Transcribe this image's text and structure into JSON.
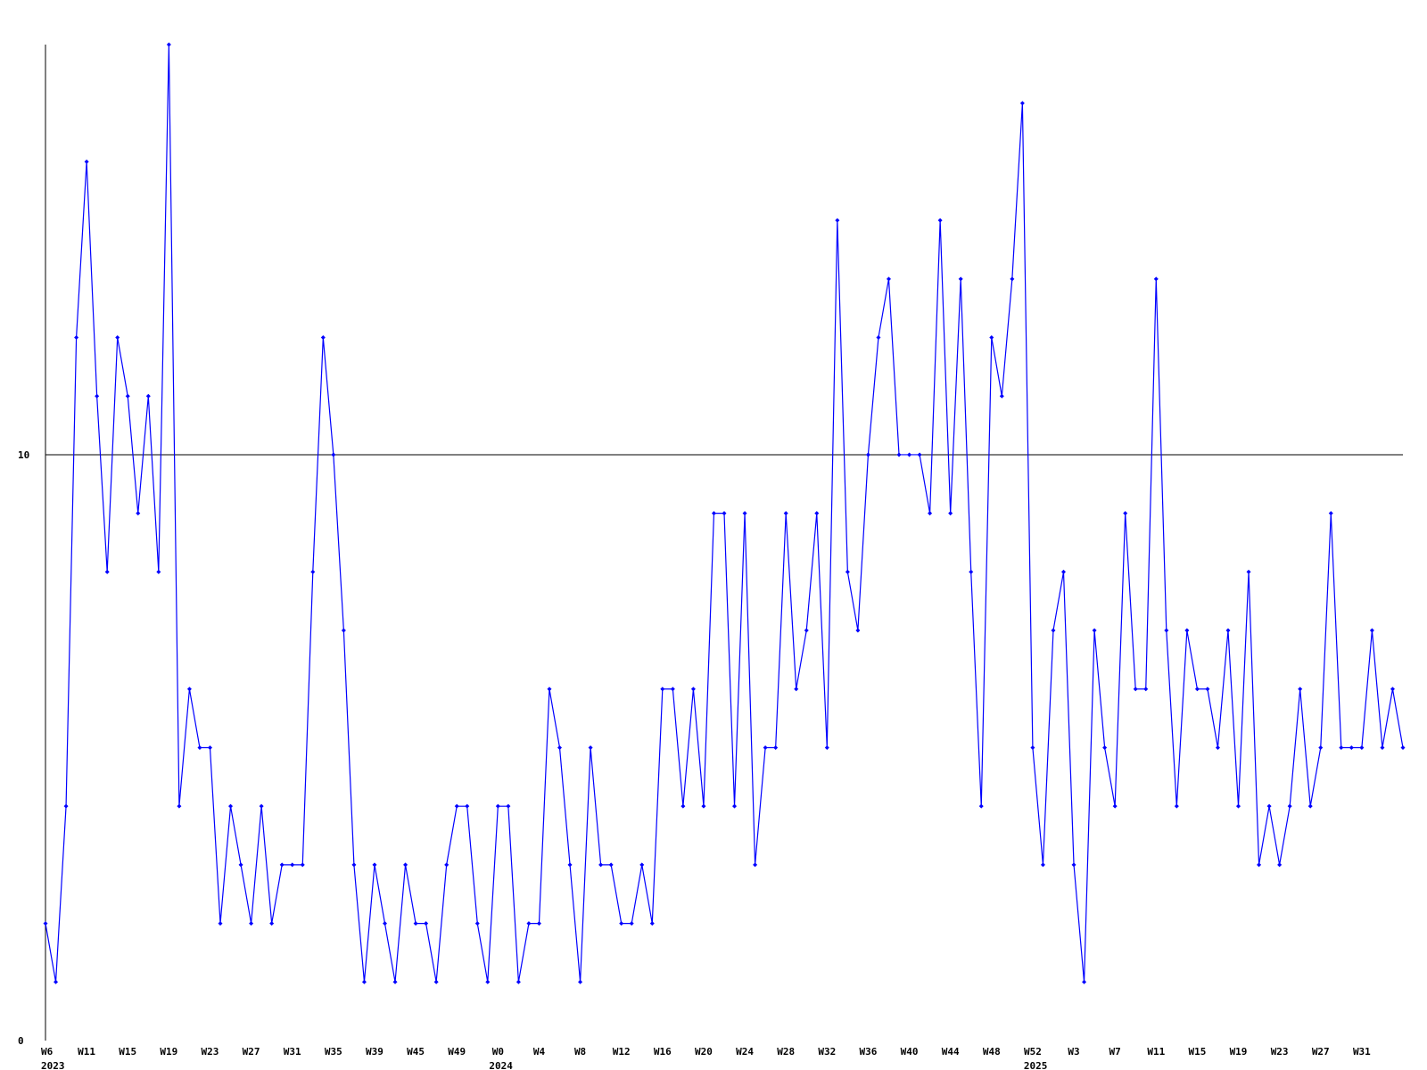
{
  "chart_data": {
    "type": "line",
    "color": "#0000ff",
    "ylim": [
      0,
      17
    ],
    "yticks": [
      0,
      10
    ],
    "grid": true,
    "categories": [
      [
        "W6",
        "2023"
      ],
      null,
      null,
      null,
      [
        "W11"
      ],
      null,
      null,
      null,
      [
        "W15"
      ],
      null,
      null,
      null,
      [
        "W19"
      ],
      null,
      null,
      null,
      [
        "W23"
      ],
      null,
      null,
      null,
      [
        "W27"
      ],
      null,
      null,
      null,
      [
        "W31"
      ],
      null,
      null,
      null,
      [
        "W35"
      ],
      null,
      null,
      null,
      [
        "W39"
      ],
      null,
      null,
      null,
      [
        "W45"
      ],
      null,
      null,
      null,
      [
        "W49"
      ],
      null,
      null,
      null,
      [
        "W0",
        "2024"
      ],
      null,
      null,
      null,
      [
        "W4"
      ],
      null,
      null,
      null,
      [
        "W8"
      ],
      null,
      null,
      null,
      [
        "W12"
      ],
      null,
      null,
      null,
      [
        "W16"
      ],
      null,
      null,
      null,
      [
        "W20"
      ],
      null,
      null,
      null,
      [
        "W24"
      ],
      null,
      null,
      null,
      [
        "W28"
      ],
      null,
      null,
      null,
      [
        "W32"
      ],
      null,
      null,
      null,
      [
        "W36"
      ],
      null,
      null,
      null,
      [
        "W40"
      ],
      null,
      null,
      null,
      [
        "W44"
      ],
      null,
      null,
      null,
      [
        "W48"
      ],
      null,
      null,
      null,
      [
        "W52",
        "2025"
      ],
      null,
      null,
      null,
      [
        "W3"
      ],
      null,
      null,
      null,
      [
        "W7"
      ],
      null,
      null,
      null,
      [
        "W11"
      ],
      null,
      null,
      null,
      [
        "W15"
      ],
      null,
      null,
      null,
      [
        "W19"
      ],
      null,
      null,
      null,
      [
        "W23"
      ],
      null,
      null,
      null,
      [
        "W27"
      ],
      null,
      null,
      null,
      [
        "W31"
      ],
      null,
      null,
      null,
      null
    ],
    "values": [
      2,
      1,
      4,
      12,
      15,
      11,
      8,
      12,
      11,
      9,
      11,
      8,
      17,
      4,
      6,
      5,
      5,
      2,
      4,
      3,
      2,
      4,
      2,
      3,
      3,
      3,
      8,
      12,
      10,
      7,
      3,
      1,
      3,
      2,
      1,
      3,
      2,
      2,
      1,
      3,
      4,
      4,
      2,
      1,
      4,
      4,
      1,
      2,
      2,
      6,
      5,
      3,
      1,
      5,
      3,
      3,
      2,
      2,
      3,
      2,
      6,
      6,
      4,
      6,
      4,
      9,
      9,
      4,
      9,
      3,
      5,
      5,
      9,
      6,
      7,
      9,
      5,
      14,
      8,
      7,
      10,
      12,
      13,
      10,
      10,
      10,
      9,
      14,
      9,
      13,
      8,
      4,
      12,
      11,
      13,
      16,
      5,
      3,
      7,
      8,
      3,
      1,
      7,
      5,
      4,
      9,
      6,
      6,
      13,
      7,
      4,
      7,
      6,
      6,
      5,
      7,
      4,
      8,
      3,
      4,
      3,
      4,
      6,
      4,
      5,
      9,
      5,
      5,
      5,
      7,
      5,
      6,
      5
    ]
  }
}
